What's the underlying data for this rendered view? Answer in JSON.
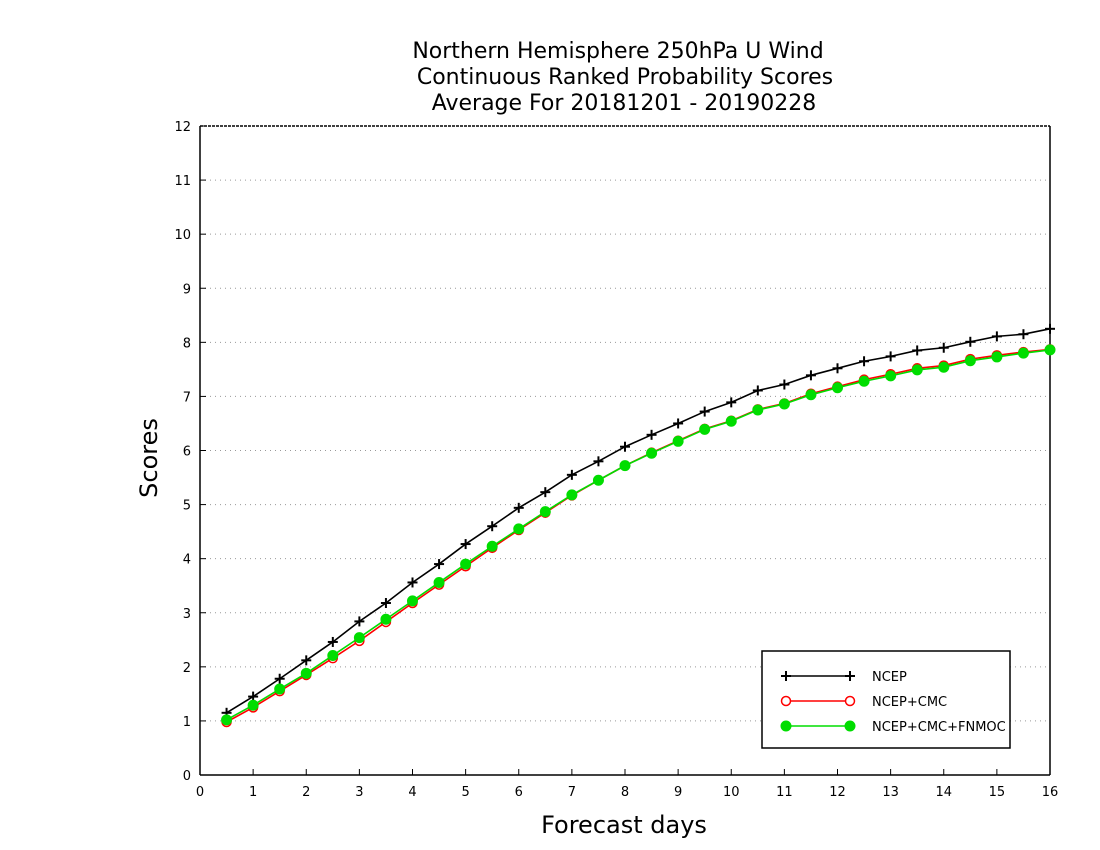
{
  "chart_data": {
    "type": "line",
    "title": [
      "Northern Hemisphere 250hPa U Wind",
      "Continuous Ranked Probability Scores",
      "Average For 20181201 - 20190228"
    ],
    "xlabel": "Forecast days",
    "ylabel": "Scores",
    "xlim": [
      0,
      16
    ],
    "ylim": [
      0,
      12
    ],
    "xticks": [
      0,
      1,
      2,
      3,
      4,
      5,
      6,
      7,
      8,
      9,
      10,
      11,
      12,
      13,
      14,
      15,
      16
    ],
    "yticks": [
      0,
      1,
      2,
      3,
      4,
      5,
      6,
      7,
      8,
      9,
      10,
      11,
      12
    ],
    "grid": "horizontal-dotted",
    "legend_position": "bottom-right",
    "x": [
      0.5,
      1,
      1.5,
      2,
      2.5,
      3,
      3.5,
      4,
      4.5,
      5,
      5.5,
      6,
      6.5,
      7,
      7.5,
      8,
      8.5,
      9,
      9.5,
      10,
      10.5,
      11,
      11.5,
      12,
      12.5,
      13,
      13.5,
      14,
      14.5,
      15,
      15.5,
      16
    ],
    "series": [
      {
        "name": "NCEP",
        "color": "#000000",
        "marker": "plus",
        "values": [
          1.15,
          1.45,
          1.78,
          2.12,
          2.46,
          2.84,
          3.18,
          3.56,
          3.9,
          4.27,
          4.6,
          4.94,
          5.23,
          5.55,
          5.8,
          6.07,
          6.29,
          6.5,
          6.72,
          6.89,
          7.11,
          7.22,
          7.39,
          7.52,
          7.65,
          7.74,
          7.85,
          7.9,
          8.01,
          8.11,
          8.15,
          8.25
        ]
      },
      {
        "name": "NCEP+CMC",
        "color": "#ff0000",
        "marker": "open-circle",
        "values": [
          0.98,
          1.25,
          1.55,
          1.85,
          2.16,
          2.48,
          2.83,
          3.18,
          3.52,
          3.86,
          4.2,
          4.53,
          4.85,
          5.17,
          5.45,
          5.72,
          5.96,
          6.18,
          6.4,
          6.55,
          6.76,
          6.87,
          7.05,
          7.18,
          7.31,
          7.41,
          7.52,
          7.57,
          7.69,
          7.76,
          7.82,
          7.87
        ]
      },
      {
        "name": "NCEP+CMC+FNMOC",
        "color": "#00dd00",
        "marker": "filled-circle",
        "values": [
          1.02,
          1.29,
          1.59,
          1.88,
          2.21,
          2.54,
          2.88,
          3.22,
          3.56,
          3.9,
          4.23,
          4.55,
          4.87,
          5.18,
          5.45,
          5.72,
          5.95,
          6.17,
          6.39,
          6.54,
          6.75,
          6.86,
          7.03,
          7.16,
          7.28,
          7.38,
          7.49,
          7.54,
          7.66,
          7.73,
          7.8,
          7.86
        ]
      }
    ]
  }
}
